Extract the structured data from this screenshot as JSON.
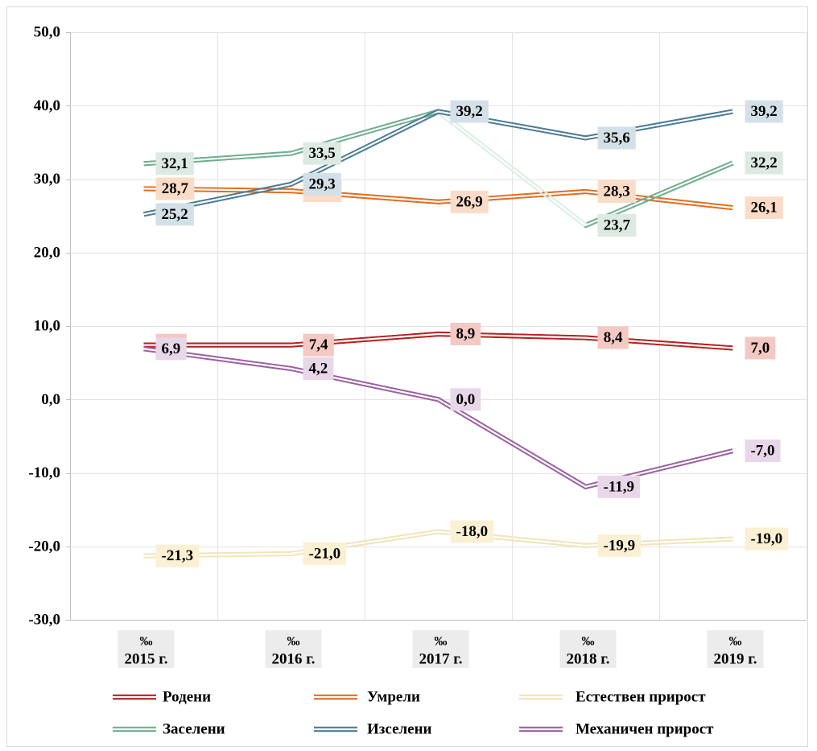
{
  "chart_data": {
    "type": "line",
    "category_prefix": "‰",
    "categories": [
      "2015 г.",
      "2016 г.",
      "2017 г.",
      "2018 г.",
      "2019 г."
    ],
    "ylim": [
      -30,
      50
    ],
    "y_ticks": [
      50,
      40,
      30,
      20,
      10,
      0,
      -10,
      -20,
      -30
    ],
    "y_tick_labels": [
      "50,0",
      "40,0",
      "30,0",
      "20,0",
      "10,0",
      "0,0",
      "-10,0",
      "-20,0",
      "-30,0"
    ],
    "grid": true,
    "legend_position": "bottom",
    "series": [
      {
        "name": "Родени",
        "color": "#b8211f",
        "label_fill": "#f4c8c3",
        "values": [
          7.4,
          7.4,
          8.9,
          8.4,
          7.0
        ],
        "labels": [
          null,
          "7,4",
          "8,9",
          "8,4",
          "7,0"
        ]
      },
      {
        "name": "Умрели",
        "color": "#e46d1f",
        "label_fill": "#fbdcc8",
        "values": [
          28.7,
          28.4,
          26.9,
          28.3,
          26.1
        ],
        "labels": [
          "28,7",
          null,
          "26,9",
          "28,3",
          "26,1"
        ]
      },
      {
        "name": "Естествен прирост",
        "color": "#f1e4b8",
        "label_fill": "#fbf0d3",
        "values": [
          -21.3,
          -21.0,
          -18.0,
          -19.9,
          -19.0
        ],
        "labels": [
          "-21,3",
          "-21,0",
          "-18,0",
          "-19,9",
          "-19,0"
        ]
      },
      {
        "name": "Заселени",
        "color": "#70ae8e",
        "label_fill": "#dceae2",
        "values": [
          32.1,
          33.5,
          39.2,
          23.7,
          32.2
        ],
        "labels": [
          "32,1",
          "33,5",
          null,
          "23,7",
          "32,2"
        ]
      },
      {
        "name": "Изселени",
        "color": "#4c7c96",
        "label_fill": "#d4e0e7",
        "values": [
          25.2,
          29.3,
          39.2,
          35.6,
          39.2
        ],
        "labels": [
          "25,2",
          "29,3",
          "39,2",
          "35,6",
          "39,2"
        ]
      },
      {
        "name": "Механичен прирост",
        "color": "#9c60a2",
        "label_fill": "#e7d7e8",
        "values": [
          6.9,
          4.2,
          0.0,
          -11.9,
          -7.0
        ],
        "labels": [
          "6,9",
          "4,2",
          "0,0",
          "-11,9",
          "-7,0"
        ]
      }
    ]
  }
}
